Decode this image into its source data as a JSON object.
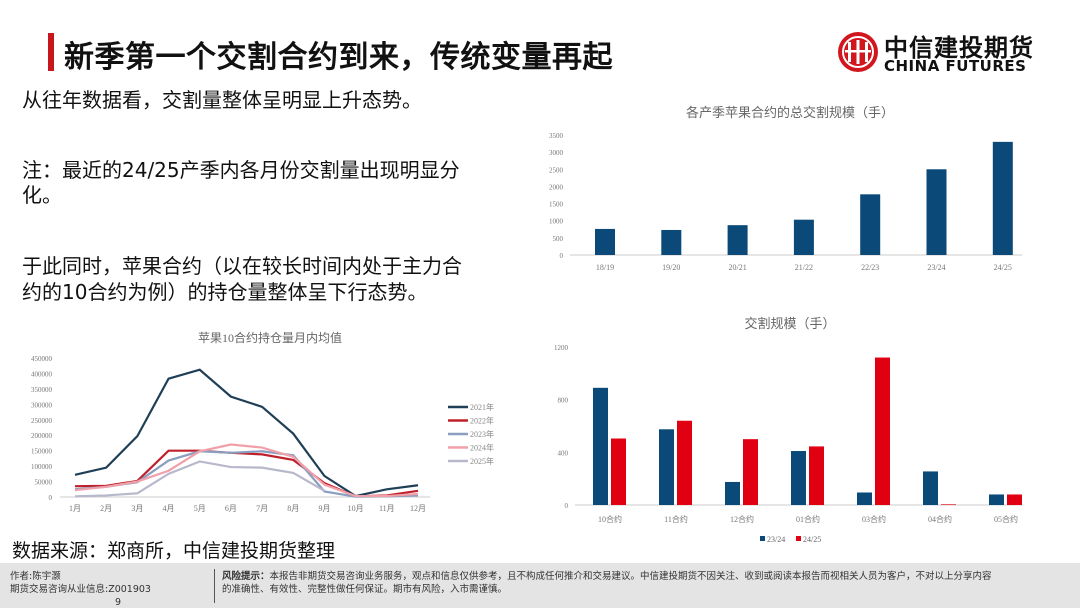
{
  "header": {
    "title": "新季第一个交割合约到来，传统变量再起",
    "logo_cn": "中信建投期货",
    "logo_en": "CHINA FUTURES",
    "accent": "#c8161d"
  },
  "body": {
    "p1": "从往年数据看，交割量整体呈明显上升态势。",
    "p2a": "注：最近的24/25产季内各月份交割量出现明显分",
    "p2b": "化。",
    "p3a": "于此同时，苹果合约（以在较长时间内处于主力合",
    "p3b": "约的10合约为例）的持仓量整体呈下行态势。",
    "source": "数据来源：郑商所，中信建投期货整理"
  },
  "footer": {
    "author": "作者:陈宇灏",
    "license_label": "期货交易咨询从业信息:Z001903",
    "license_tail": "9",
    "risk_title": "风险提示：",
    "risk_text1": "本报告非期货交易咨询业务服务，观点和信息仅供参考，且不构成任何推介和交易建议。中信建投期货不因关注、收到或阅读本报告而视相关人员为客户，不对以上分享内容",
    "risk_text2": "的准确性、有效性、完整性做任何保证。期市有风险，入市需谨慎。"
  },
  "chart_data": [
    {
      "type": "line",
      "title": "苹果10合约持仓量月内均值",
      "categories": [
        "1月",
        "2月",
        "3月",
        "4月",
        "5月",
        "6月",
        "7月",
        "8月",
        "9月",
        "10月",
        "11月",
        "12月"
      ],
      "ylim": [
        0,
        450000
      ],
      "yticks": [
        0,
        50000,
        100000,
        150000,
        200000,
        250000,
        300000,
        350000,
        400000,
        450000
      ],
      "legend": "right",
      "series": [
        {
          "name": "2021年",
          "color": "#1f3f57",
          "values": [
            72000,
            95000,
            197000,
            383000,
            412000,
            325000,
            292000,
            205000,
            68000,
            3000,
            25000,
            38000
          ]
        },
        {
          "name": "2022年",
          "color": "#c0202a",
          "values": [
            35000,
            36000,
            52000,
            150000,
            150000,
            143000,
            138000,
            120000,
            45000,
            2000,
            5000,
            20000
          ]
        },
        {
          "name": "2023年",
          "color": "#8a9ec0",
          "values": [
            25000,
            33000,
            48000,
            118000,
            148000,
            143000,
            148000,
            135000,
            18000,
            1000,
            2000,
            5000
          ]
        },
        {
          "name": "2024年",
          "color": "#f0a0a8",
          "values": [
            22000,
            33000,
            50000,
            85000,
            148000,
            170000,
            160000,
            130000,
            40000,
            3000,
            3000,
            10000
          ]
        },
        {
          "name": "2025年",
          "color": "#b8b8cc",
          "values": [
            2000,
            5000,
            12000,
            75000,
            115000,
            97000,
            95000,
            78000,
            20000,
            null,
            null,
            null
          ]
        }
      ]
    },
    {
      "type": "bar",
      "title": "各产季苹果合约的总交割规模（手）",
      "categories": [
        "18/19",
        "19/20",
        "20/21",
        "21/22",
        "22/23",
        "23/24",
        "24/25"
      ],
      "values": [
        760,
        730,
        870,
        1030,
        1770,
        2500,
        3300
      ],
      "ylim": [
        0,
        3500
      ],
      "yticks": [
        0,
        500,
        1000,
        1500,
        2000,
        2500,
        3000,
        3500
      ],
      "color": "#0b4a78"
    },
    {
      "type": "bar",
      "title": "交割规模（手）",
      "categories": [
        "10合约",
        "11合约",
        "12合约",
        "01合约",
        "03合约",
        "04合约",
        "05合约"
      ],
      "ylim": [
        0,
        1200
      ],
      "yticks": [
        0,
        400,
        800,
        1200
      ],
      "legend": "bottom",
      "series": [
        {
          "name": "23/24",
          "color": "#0b4a78",
          "values": [
            890,
            575,
            175,
            410,
            95,
            255,
            80
          ]
        },
        {
          "name": "24/25",
          "color": "#e00012",
          "values": [
            505,
            640,
            500,
            445,
            1120,
            5,
            80
          ]
        }
      ]
    }
  ]
}
